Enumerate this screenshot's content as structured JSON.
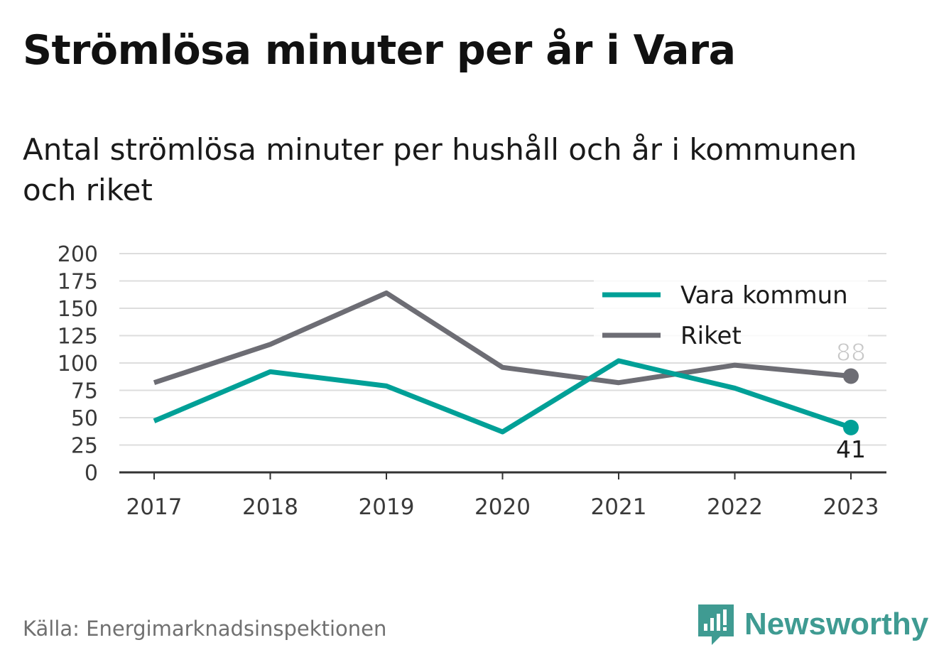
{
  "title": "Strömlösa minuter per år i Vara",
  "subtitle": "Antal strömlösa minuter per hushåll och år i kommunen och riket",
  "source": "Källa: Energimarknadsinspektionen",
  "brand": {
    "name": "Newsworthy",
    "color": "#3f9b92",
    "icon": "bar-chart-speech-bubble-icon"
  },
  "chart_data": {
    "type": "line",
    "x": [
      "2017",
      "2018",
      "2019",
      "2020",
      "2021",
      "2022",
      "2023"
    ],
    "yticks": [
      "0",
      "25",
      "50",
      "75",
      "100",
      "125",
      "150",
      "175",
      "200"
    ],
    "ylim": [
      0,
      200
    ],
    "grid": true,
    "legend_position": "top-right",
    "series": [
      {
        "name": "Vara kommun",
        "color": "#00a097",
        "values": [
          47,
          92,
          79,
          37,
          102,
          77,
          41
        ],
        "end_label": "41"
      },
      {
        "name": "Riket",
        "color": "#6d6d74",
        "values": [
          82,
          117,
          164,
          96,
          82,
          98,
          88
        ],
        "end_label": "88"
      }
    ]
  }
}
